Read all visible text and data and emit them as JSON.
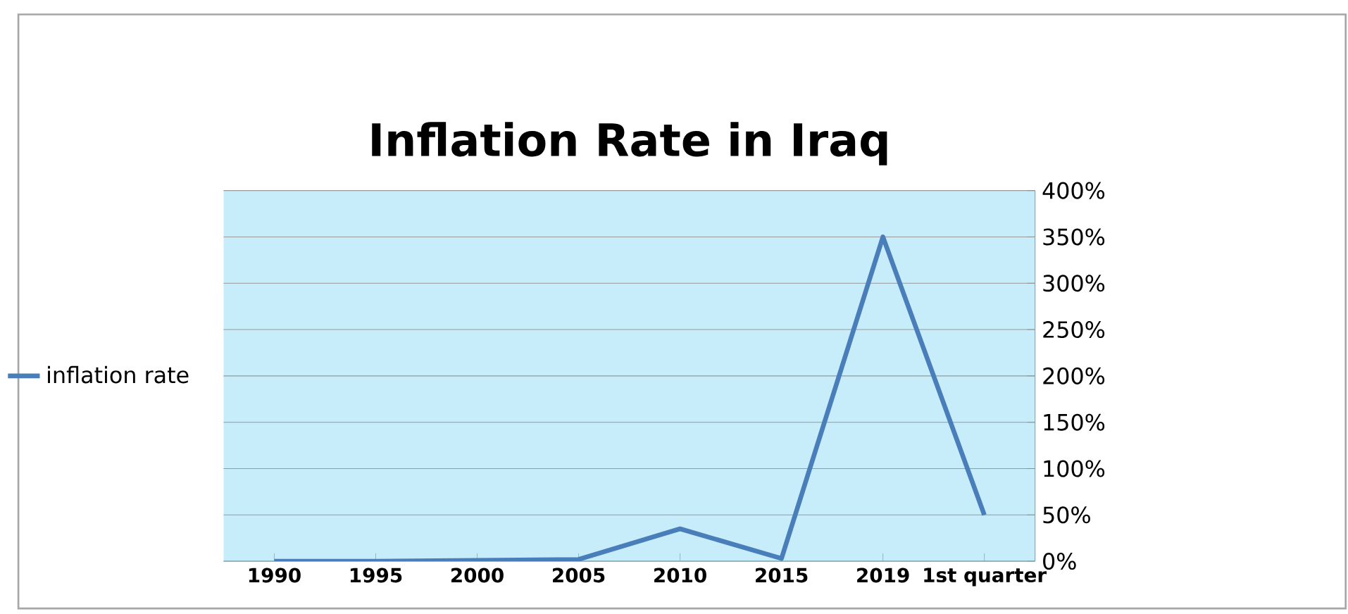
{
  "chart_data": {
    "type": "line",
    "title": "Inflation Rate in Iraq",
    "categories": [
      "1990",
      "1995",
      "2000",
      "2005",
      "2010",
      "2015",
      "2019",
      "1st quarter"
    ],
    "series": [
      {
        "name": "inflation rate",
        "color": "#4a7ebb",
        "values": [
          0,
          0,
          1,
          2,
          35,
          3,
          350,
          50
        ]
      }
    ],
    "ylim": [
      0,
      400
    ],
    "yticks": [
      {
        "value": 0,
        "label": "0%"
      },
      {
        "value": 50,
        "label": "50%"
      },
      {
        "value": 100,
        "label": "100%"
      },
      {
        "value": 150,
        "label": "150%"
      },
      {
        "value": 200,
        "label": "200%"
      },
      {
        "value": 250,
        "label": "250%"
      },
      {
        "value": 300,
        "label": "300%"
      },
      {
        "value": 350,
        "label": "350%"
      },
      {
        "value": 400,
        "label": "400%"
      }
    ],
    "grid": "y",
    "legend": "left",
    "marker": "none",
    "line_style": "solid"
  }
}
